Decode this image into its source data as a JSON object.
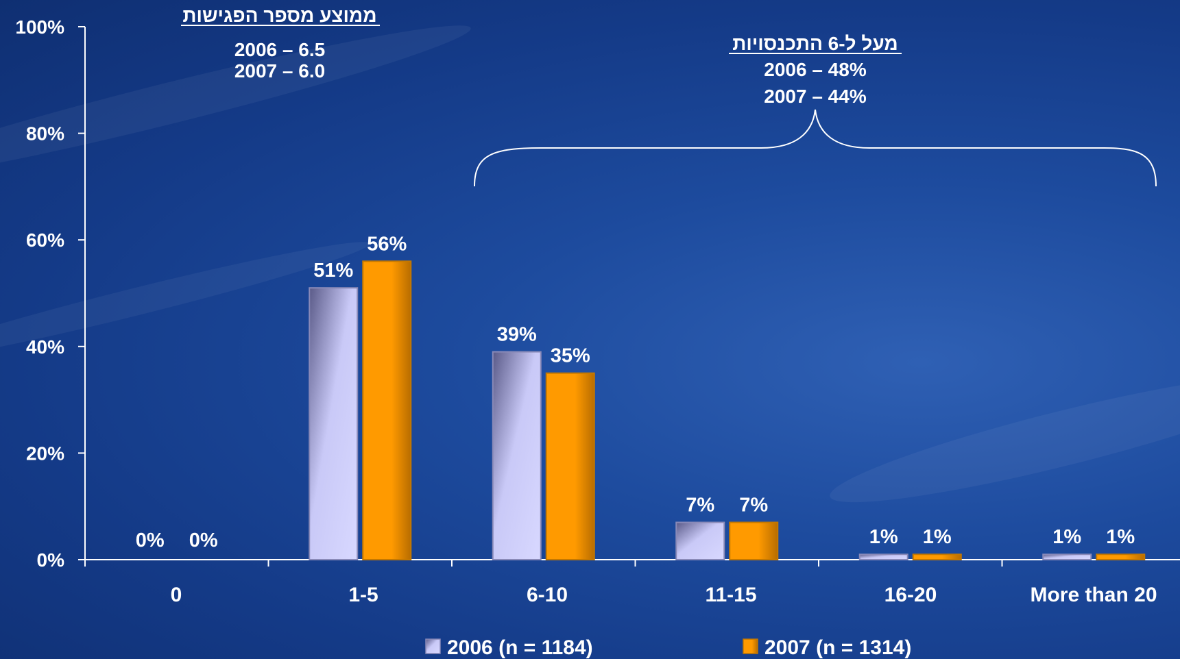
{
  "chart_data": {
    "type": "bar",
    "categories": [
      "0",
      "1-5",
      "6-10",
      "11-15",
      "16-20",
      "More than 20"
    ],
    "series": [
      {
        "name": "2006 (n = 1184)",
        "values": [
          0,
          51,
          39,
          7,
          1,
          1
        ],
        "labels": [
          "0%",
          "51%",
          "39%",
          "7%",
          "1%",
          "1%"
        ],
        "color": "#c9c9f7"
      },
      {
        "name": "2007 (n = 1314)",
        "values": [
          0,
          56,
          35,
          7,
          1,
          1
        ],
        "labels": [
          "0%",
          "56%",
          "35%",
          "7%",
          "1%",
          "1%"
        ],
        "color": "#ff9a00"
      }
    ],
    "ylim": [
      0,
      100
    ],
    "yticks": [
      {
        "value": 0,
        "label": "0%"
      },
      {
        "value": 20,
        "label": "20%"
      },
      {
        "value": 40,
        "label": "40%"
      },
      {
        "value": 60,
        "label": "60%"
      },
      {
        "value": 80,
        "label": "80%"
      },
      {
        "value": 100,
        "label": "100%"
      }
    ],
    "grid": false,
    "legend_position": "bottom",
    "annotations": {
      "left": {
        "title": "ממוצע מספר הפגישות",
        "lines": [
          "2006 – 6.5",
          "2007 – 6.0"
        ]
      },
      "right": {
        "title": "מעל ל-6 התכנסויות",
        "lines": [
          "2006 – 48%",
          "2007 – 44%"
        ],
        "brace_categories": [
          "6-10",
          "More than 20"
        ]
      }
    }
  }
}
